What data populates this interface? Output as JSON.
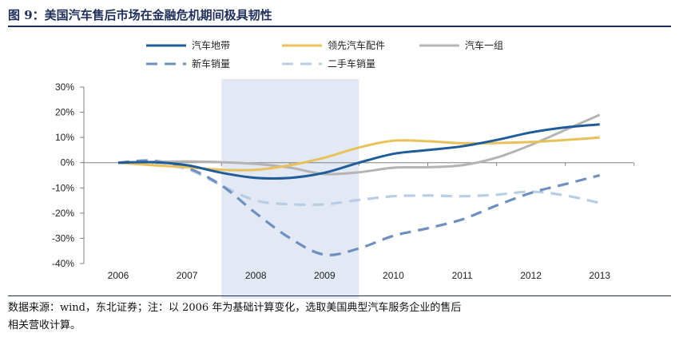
{
  "figure_title": "图 9：美国汽车售后市场在金融危机期间极具韧性",
  "source_line1": "数据来源：wind，东北证券；注：以 2006 年为基础计算变化，选取美国典型汽车服务企业的售后",
  "source_line2": "相关营收计算。",
  "colors": {
    "series_0": "#1f5c99",
    "series_1": "#e8c15a",
    "series_2": "#b4b4b4",
    "series_3": "#6f8fbf",
    "series_4": "#b8cde6",
    "highlight": "#e2e8f4",
    "axis": "#808080"
  },
  "chart_data": {
    "type": "line",
    "title": "",
    "xlabel": "",
    "ylabel": "",
    "categories": [
      "2006",
      "2007",
      "2008",
      "2009",
      "2010",
      "2011",
      "2012",
      "2013"
    ],
    "ylim": [
      -0.4,
      0.3
    ],
    "yticks": [
      "30%",
      "20%",
      "10%",
      "0%",
      "-10%",
      "-20%",
      "-30%",
      "-40%"
    ],
    "ytick_values": [
      0.3,
      0.2,
      0.1,
      0.0,
      -0.1,
      -0.2,
      -0.3,
      -0.4
    ],
    "highlight_range": [
      "2008",
      "2009"
    ],
    "grid": false,
    "legend_position": "top",
    "series": [
      {
        "name": "汽车地带",
        "style": "solid",
        "points": [
          [
            0.0,
            0.0
          ],
          [
            0.5,
            0.002
          ],
          [
            1.0,
            -0.01
          ],
          [
            1.5,
            -0.04
          ],
          [
            2.0,
            -0.06
          ],
          [
            2.5,
            -0.06
          ],
          [
            3.0,
            -0.04
          ],
          [
            3.5,
            0.0
          ],
          [
            4.0,
            0.035
          ],
          [
            4.5,
            0.05
          ],
          [
            5.0,
            0.065
          ],
          [
            5.5,
            0.09
          ],
          [
            6.0,
            0.12
          ],
          [
            6.5,
            0.14
          ],
          [
            7.0,
            0.152
          ]
        ]
      },
      {
        "name": "领先汽车配件",
        "style": "solid",
        "points": [
          [
            0.0,
            0.0
          ],
          [
            0.5,
            -0.01
          ],
          [
            1.0,
            -0.018
          ],
          [
            1.5,
            -0.028
          ],
          [
            2.0,
            -0.028
          ],
          [
            2.5,
            -0.01
          ],
          [
            3.0,
            0.02
          ],
          [
            3.5,
            0.06
          ],
          [
            4.0,
            0.087
          ],
          [
            4.5,
            0.085
          ],
          [
            5.0,
            0.077
          ],
          [
            5.5,
            0.078
          ],
          [
            6.0,
            0.082
          ],
          [
            6.5,
            0.09
          ],
          [
            7.0,
            0.1
          ]
        ]
      },
      {
        "name": "汽车一组",
        "style": "solid",
        "points": [
          [
            0.0,
            0.0
          ],
          [
            0.5,
            0.003
          ],
          [
            1.0,
            0.005
          ],
          [
            1.5,
            0.002
          ],
          [
            2.0,
            -0.005
          ],
          [
            2.5,
            -0.02
          ],
          [
            3.0,
            -0.045
          ],
          [
            3.5,
            -0.038
          ],
          [
            4.0,
            -0.02
          ],
          [
            4.5,
            -0.018
          ],
          [
            5.0,
            -0.01
          ],
          [
            5.5,
            0.02
          ],
          [
            6.0,
            0.07
          ],
          [
            6.5,
            0.13
          ],
          [
            7.0,
            0.19
          ]
        ]
      },
      {
        "name": "新车销量",
        "style": "dashed",
        "points": [
          [
            0.0,
            0.0
          ],
          [
            0.5,
            0.008
          ],
          [
            1.0,
            -0.02
          ],
          [
            1.5,
            -0.09
          ],
          [
            2.0,
            -0.2
          ],
          [
            2.5,
            -0.3
          ],
          [
            3.0,
            -0.365
          ],
          [
            3.5,
            -0.34
          ],
          [
            4.0,
            -0.29
          ],
          [
            4.5,
            -0.26
          ],
          [
            5.0,
            -0.225
          ],
          [
            5.5,
            -0.17
          ],
          [
            6.0,
            -0.12
          ],
          [
            6.5,
            -0.085
          ],
          [
            7.0,
            -0.05
          ]
        ]
      },
      {
        "name": "二手车销量",
        "style": "dashed",
        "points": [
          [
            0.0,
            0.0
          ],
          [
            0.5,
            -0.008
          ],
          [
            1.0,
            -0.025
          ],
          [
            1.5,
            -0.09
          ],
          [
            2.0,
            -0.15
          ],
          [
            2.5,
            -0.165
          ],
          [
            3.0,
            -0.165
          ],
          [
            3.5,
            -0.148
          ],
          [
            4.0,
            -0.133
          ],
          [
            4.5,
            -0.13
          ],
          [
            5.0,
            -0.133
          ],
          [
            5.5,
            -0.127
          ],
          [
            6.0,
            -0.115
          ],
          [
            6.5,
            -0.13
          ],
          [
            7.0,
            -0.16
          ]
        ]
      }
    ]
  }
}
